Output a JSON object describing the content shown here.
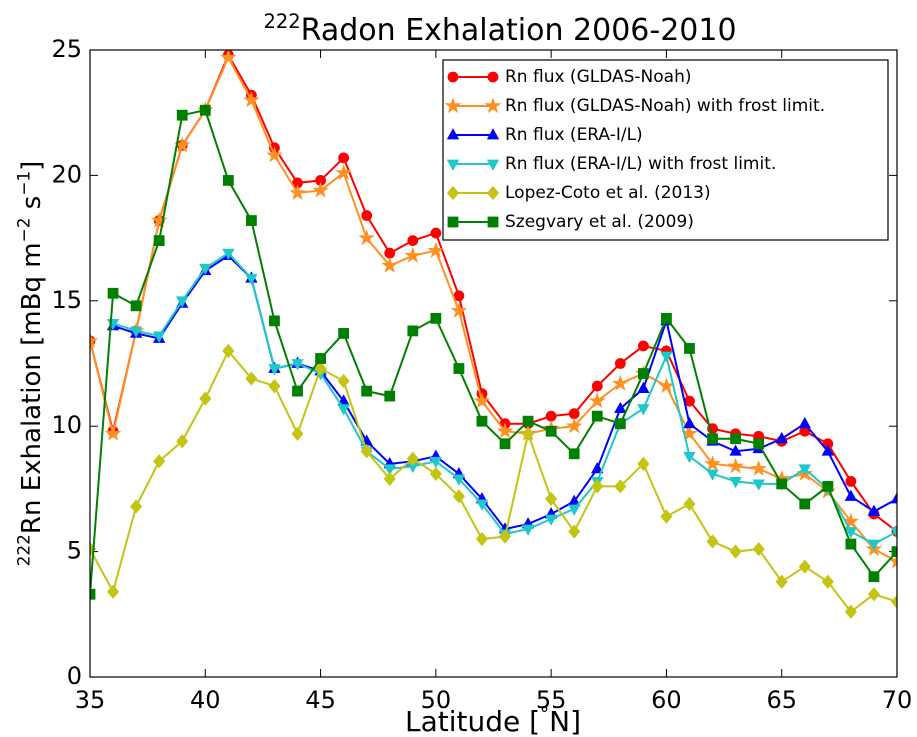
{
  "chart_data": {
    "type": "line",
    "title_parts": [
      {
        "text": "222",
        "sup": true
      },
      {
        "text": "Radon Exhalation 2006-2010",
        "sup": false
      }
    ],
    "xlabel_parts": [
      {
        "text": "Latitude  [",
        "sup": false
      },
      {
        "text": "°",
        "sup": true
      },
      {
        "text": "N]",
        "sup": false
      }
    ],
    "ylabel_parts": [
      {
        "text": "222",
        "sup": true
      },
      {
        "text": "Rn Exhalation  [mBq m",
        "sup": false
      },
      {
        "text": "−2",
        "sup": true
      },
      {
        "text": " s",
        "sup": false
      },
      {
        "text": "−1",
        "sup": true
      },
      {
        "text": "]",
        "sup": false
      }
    ],
    "x": [
      35,
      36,
      37,
      38,
      39,
      40,
      41,
      42,
      43,
      44,
      45,
      46,
      47,
      48,
      49,
      50,
      51,
      52,
      53,
      54,
      55,
      56,
      57,
      58,
      59,
      60,
      61,
      62,
      63,
      64,
      65,
      66,
      67,
      68,
      69,
      70
    ],
    "xlim": [
      35,
      70
    ],
    "xticks": [
      35,
      40,
      45,
      50,
      55,
      60,
      65,
      70
    ],
    "ylim": [
      0,
      25
    ],
    "yticks": [
      0,
      5,
      10,
      15,
      20,
      25
    ],
    "grid": false,
    "legend": "upper right",
    "series": [
      {
        "name": "Rn flux (GLDAS-Noah)",
        "color": "#ff0000",
        "marker": "circle",
        "values": [
          13.4,
          9.8,
          13.8,
          18.2,
          21.2,
          22.6,
          24.8,
          23.2,
          21.1,
          19.7,
          19.8,
          20.7,
          18.4,
          16.9,
          17.4,
          17.7,
          15.2,
          11.3,
          10.1,
          10.1,
          10.4,
          10.5,
          11.6,
          12.5,
          13.2,
          13.0,
          11.0,
          9.9,
          9.7,
          9.6,
          9.4,
          9.8,
          9.3,
          7.8,
          6.5,
          5.8
        ]
      },
      {
        "name": "Rn flux (GLDAS-Noah) with frost limit.",
        "color": "#ff9122",
        "marker": "star",
        "values": [
          13.4,
          9.7,
          13.8,
          18.2,
          21.2,
          22.6,
          24.7,
          23.0,
          20.8,
          19.3,
          19.4,
          20.1,
          17.5,
          16.4,
          16.8,
          17.0,
          14.6,
          11.0,
          9.8,
          9.7,
          9.9,
          10.0,
          11.0,
          11.7,
          12.1,
          11.6,
          9.7,
          8.5,
          8.4,
          8.3,
          7.9,
          8.1,
          7.4,
          6.2,
          5.1,
          4.6
        ]
      },
      {
        "name": "Rn flux (ERA-I/L)",
        "color": "#0000ff",
        "marker": "triangle-up",
        "values": [
          null,
          14.0,
          13.7,
          13.5,
          14.9,
          16.2,
          16.8,
          15.9,
          12.3,
          12.5,
          12.2,
          11.0,
          9.4,
          8.5,
          8.6,
          8.8,
          8.1,
          7.1,
          5.9,
          6.1,
          6.5,
          7.0,
          8.3,
          10.7,
          11.5,
          14.2,
          10.1,
          9.4,
          9.0,
          9.1,
          9.5,
          10.1,
          9.0,
          7.2,
          6.6,
          7.1
        ]
      },
      {
        "name": "Rn flux (ERA-I/L) with frost limit.",
        "color": "#1fc8c8",
        "marker": "triangle-down",
        "values": [
          null,
          14.1,
          13.8,
          13.6,
          15.0,
          16.3,
          16.9,
          15.9,
          12.3,
          12.5,
          12.1,
          10.7,
          9.0,
          8.3,
          8.4,
          8.6,
          7.9,
          6.9,
          5.7,
          5.9,
          6.3,
          6.7,
          7.8,
          10.1,
          10.7,
          12.8,
          8.8,
          8.1,
          7.8,
          7.7,
          7.7,
          8.3,
          7.5,
          5.8,
          5.3,
          5.8
        ]
      },
      {
        "name": "Lopez-Coto et al. (2013)",
        "color": "#c4c412",
        "marker": "diamond",
        "values": [
          5.1,
          3.4,
          6.8,
          8.6,
          9.4,
          11.1,
          13.0,
          11.9,
          11.6,
          9.7,
          12.3,
          11.8,
          9.0,
          7.9,
          8.7,
          8.1,
          7.2,
          5.5,
          5.6,
          9.7,
          7.1,
          5.8,
          7.6,
          7.6,
          8.5,
          6.4,
          6.9,
          5.4,
          5.0,
          5.1,
          3.8,
          4.4,
          3.8,
          2.6,
          3.3,
          3.0
        ]
      },
      {
        "name": "Szegvary et al. (2009)",
        "color": "#008000",
        "marker": "square",
        "values": [
          3.3,
          15.3,
          14.8,
          17.4,
          22.4,
          22.6,
          19.8,
          18.2,
          14.2,
          11.4,
          12.7,
          13.7,
          11.4,
          11.2,
          13.8,
          14.3,
          12.3,
          10.2,
          9.3,
          10.2,
          9.8,
          8.9,
          10.4,
          10.1,
          12.1,
          14.3,
          13.1,
          9.5,
          9.5,
          9.3,
          7.7,
          6.9,
          7.6,
          5.3,
          4.0,
          5.0
        ]
      }
    ]
  }
}
